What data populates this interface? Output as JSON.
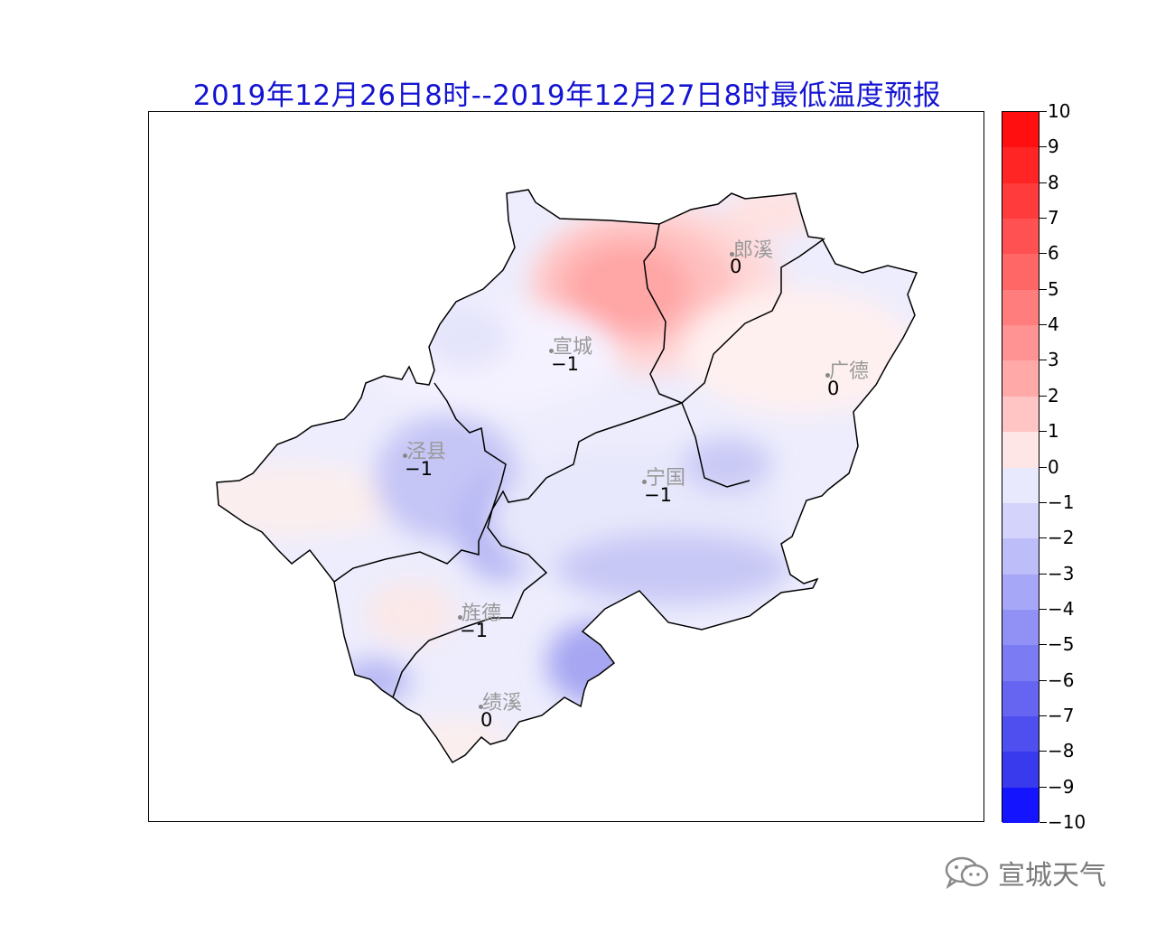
{
  "title": "2019年12月26日8时--2019年12月27日8时最低温度预报",
  "colorbar": {
    "labels": [
      "10",
      "9",
      "8",
      "7",
      "6",
      "5",
      "4",
      "3",
      "2",
      "1",
      "0",
      "−1",
      "−2",
      "−3",
      "−4",
      "−5",
      "−6",
      "−7",
      "−8",
      "−9",
      "−10"
    ],
    "colors": [
      "#ff0f0f",
      "#ff2525",
      "#ff3b3b",
      "#ff5151",
      "#ff6767",
      "#ff7d7d",
      "#ff9393",
      "#ffa9a9",
      "#ffc4c4",
      "#ffe6e6",
      "#e9e9fd",
      "#d3d3fb",
      "#bdbdf9",
      "#a7a7f7",
      "#9191f5",
      "#7b7bf3",
      "#6565f1",
      "#4f4fef",
      "#3939ed",
      "#1414ff"
    ]
  },
  "stations": [
    {
      "name": "郎溪",
      "value": "0"
    },
    {
      "name": "宣城",
      "value": "−1"
    },
    {
      "name": "广德",
      "value": "0"
    },
    {
      "name": "泾县",
      "value": "−1"
    },
    {
      "name": "宁国",
      "value": "−1"
    },
    {
      "name": "旌德",
      "value": "−1"
    },
    {
      "name": "绩溪",
      "value": "0"
    }
  ],
  "watermark": {
    "icon": "wechat-icon",
    "text": "宣城天气"
  }
}
